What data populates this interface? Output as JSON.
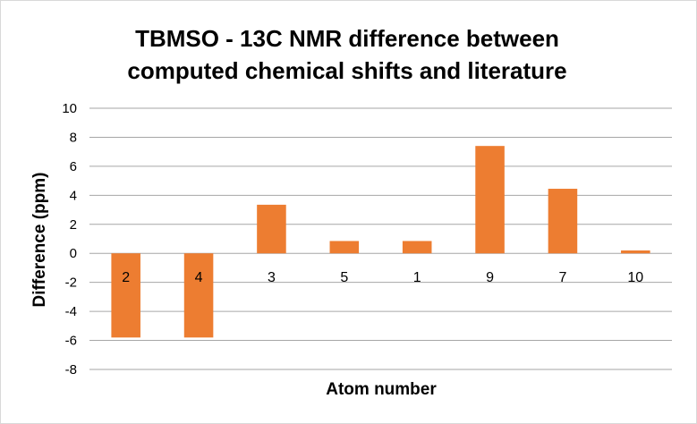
{
  "chart_data": {
    "type": "bar",
    "title_lines": [
      "TBMSO - 13C NMR difference between",
      "computed chemical shifts and literature"
    ],
    "xlabel": "Atom number",
    "ylabel": "Difference (ppm)",
    "categories": [
      "2",
      "4",
      "3",
      "5",
      "1",
      "9",
      "7",
      "10"
    ],
    "values": [
      -5.8,
      -5.8,
      3.35,
      0.85,
      0.85,
      7.4,
      4.45,
      0.2
    ],
    "ylim": [
      -8,
      10
    ],
    "yticks": [
      -8,
      -6,
      -4,
      -2,
      0,
      2,
      4,
      6,
      8,
      10
    ],
    "grid": true,
    "legend": "none",
    "bar_color": "#ed7d31",
    "grid_color": "#a6a6a6"
  }
}
